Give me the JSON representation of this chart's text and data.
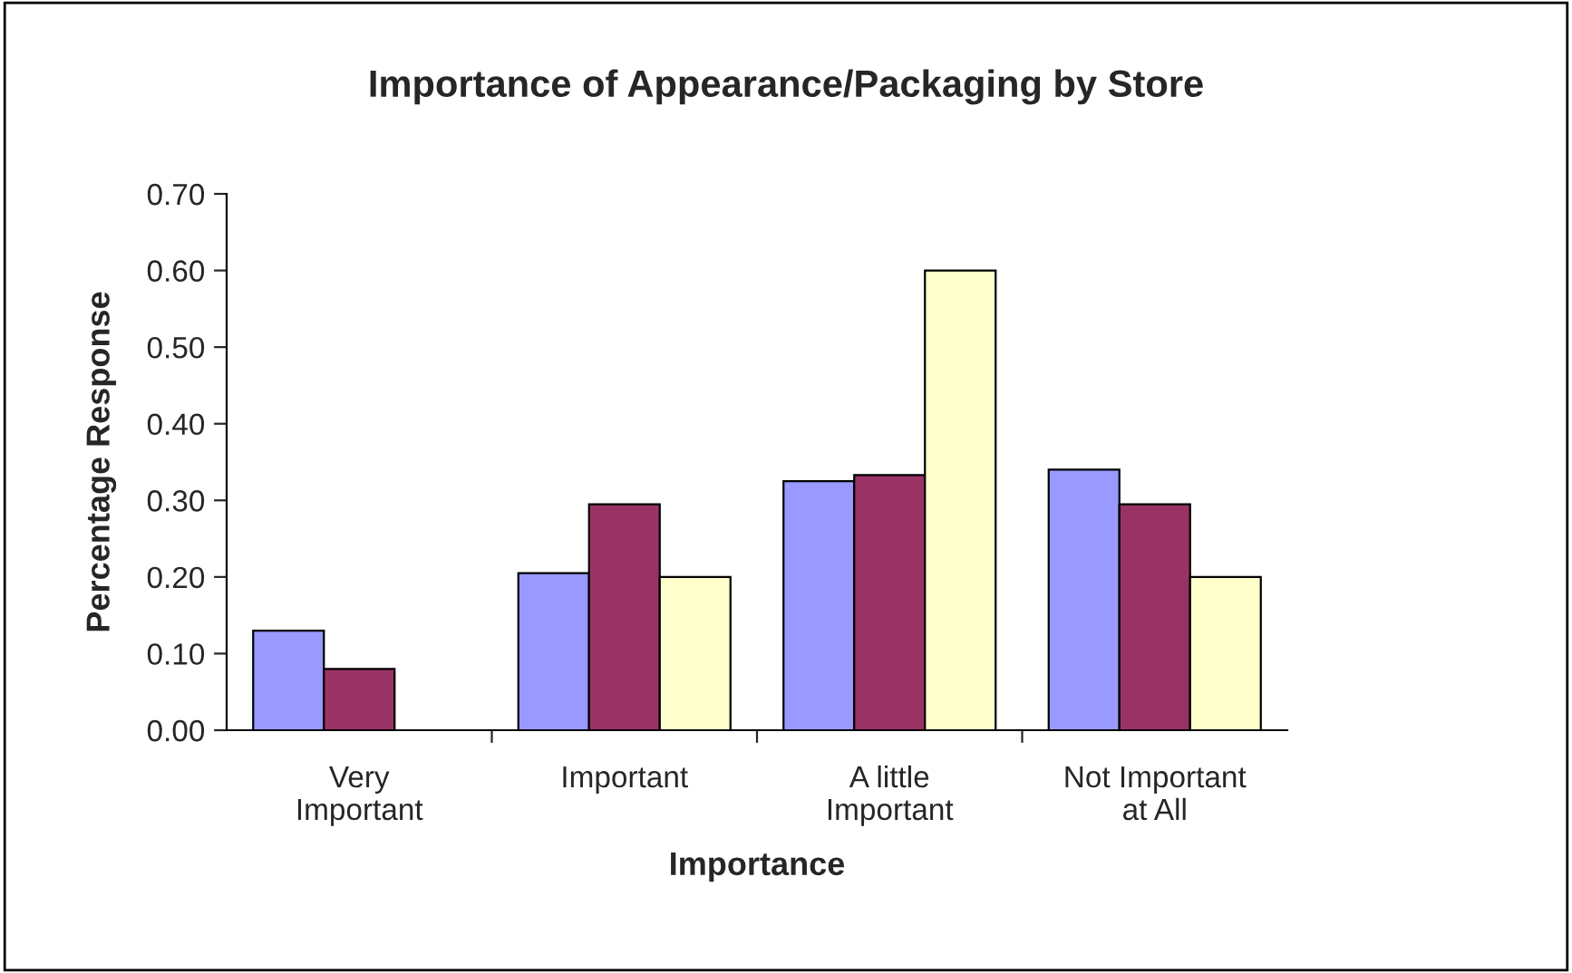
{
  "chart_data": {
    "type": "bar",
    "title": "Importance of Appearance/Packaging by Store",
    "xlabel": "Importance",
    "ylabel": "Percentage Response",
    "categories": [
      "Very\nImportant",
      "Important",
      "A little\nImportant",
      "Not Important\nat All"
    ],
    "series": [
      {
        "color": "#9999ff",
        "values": [
          0.13,
          0.205,
          0.325,
          0.34
        ]
      },
      {
        "color": "#993366",
        "values": [
          0.08,
          0.295,
          0.333,
          0.295
        ]
      },
      {
        "color": "#ffffcc",
        "values": [
          null,
          0.2,
          0.6,
          0.2
        ]
      }
    ],
    "ylim": [
      0,
      0.7
    ],
    "yticks": [
      {
        "value": 0,
        "label": "0.00"
      },
      {
        "value": 0.1,
        "label": "0.10"
      },
      {
        "value": 0.2,
        "label": "0.20"
      },
      {
        "value": 0.3,
        "label": "0.30"
      },
      {
        "value": 0.4,
        "label": "0.40"
      },
      {
        "value": 0.5,
        "label": "0.50"
      },
      {
        "value": 0.6,
        "label": "0.60"
      },
      {
        "value": 0.7,
        "label": "0.70"
      }
    ],
    "grid": false
  }
}
